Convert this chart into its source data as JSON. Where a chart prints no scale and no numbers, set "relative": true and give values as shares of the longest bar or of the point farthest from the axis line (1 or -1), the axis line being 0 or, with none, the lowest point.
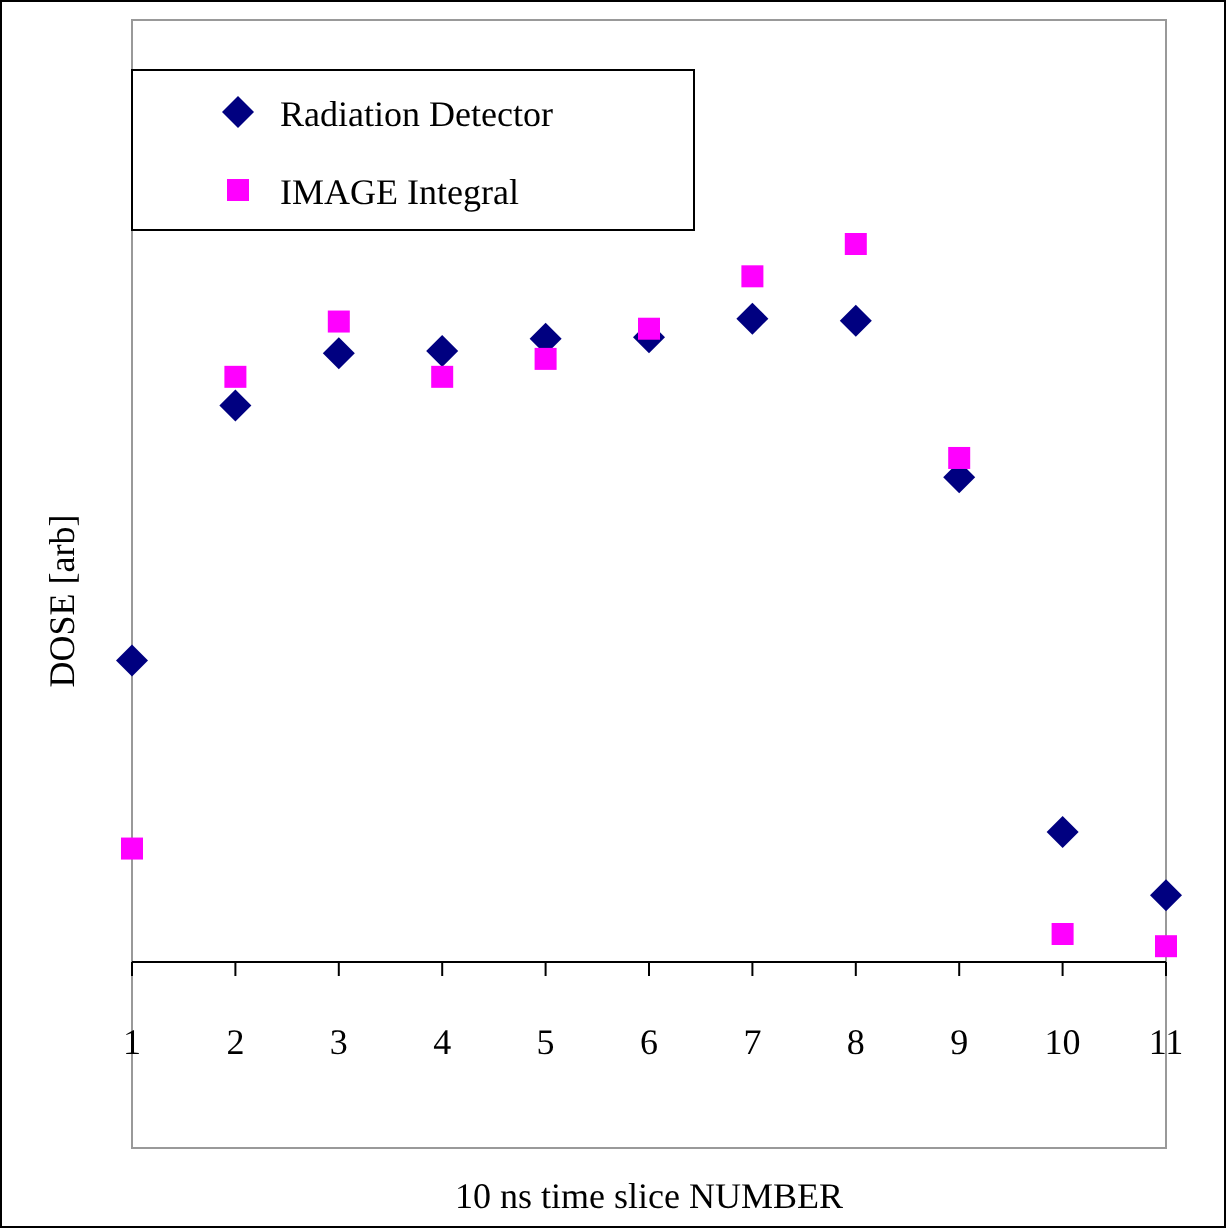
{
  "chart_data": {
    "type": "scatter",
    "xlabel": "10 ns time slice NUMBER",
    "ylabel": "DOSE [arb]",
    "relative": true,
    "x": [
      1,
      2,
      3,
      4,
      5,
      6,
      7,
      8,
      9,
      10,
      11
    ],
    "xlim": [
      1,
      11
    ],
    "xticks": [
      1,
      2,
      3,
      4,
      5,
      6,
      7,
      8,
      9,
      10,
      11
    ],
    "tick_labels": "x",
    "grid": false,
    "legend": "top left",
    "series": [
      {
        "name": "Radiation Detector",
        "color": "#000080",
        "marker": "diamond",
        "values": [
          0.42,
          0.775,
          0.848,
          0.851,
          0.868,
          0.87,
          0.896,
          0.893,
          0.675,
          0.181,
          0.093
        ]
      },
      {
        "name": "IMAGE Integral",
        "color": "#ff00ff",
        "marker": "square",
        "values": [
          0.158,
          0.815,
          0.892,
          0.815,
          0.84,
          0.882,
          0.955,
          1.0,
          0.702,
          0.039,
          0.022
        ]
      }
    ]
  }
}
